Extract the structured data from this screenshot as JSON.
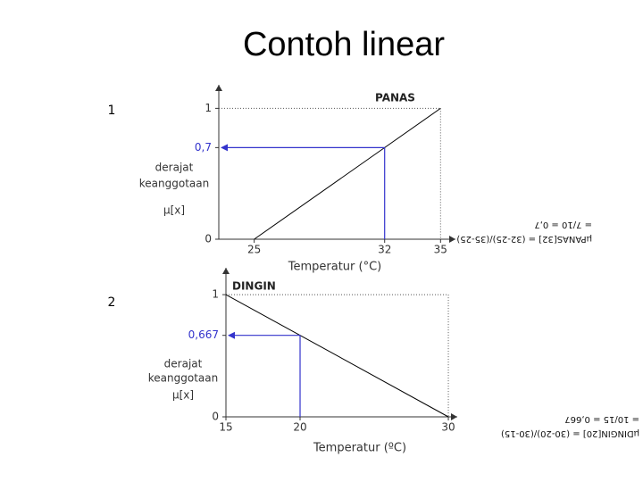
{
  "title": "Contoh linear",
  "chart_data": [
    {
      "type": "line",
      "number": "1",
      "title": "PANAS",
      "xlabel": "Temperatur (°C)",
      "ylabel": [
        "derajat",
        "keanggotaan"
      ],
      "ylabel2": "μ[x]",
      "x": [
        25,
        32,
        35
      ],
      "values": [
        0,
        0.7,
        1
      ],
      "color": "#000000",
      "guide_color": "#3333cc",
      "xlim": [
        23.1,
        35.8
      ],
      "xticks": [
        25,
        32,
        35
      ],
      "ylim": [
        0,
        1.18
      ],
      "yticks": [
        0,
        {
          "value": 0.7,
          "label": "0,7"
        },
        1
      ],
      "formula": [
        "μPANAS[32] = (32-25)/(35-25)",
        "= 7/10 = 0,7"
      ]
    },
    {
      "type": "line",
      "number": "2",
      "title": "DINGIN",
      "xlabel": "Temperatur (ºC)",
      "ylabel": [
        "derajat",
        "keanggotaan"
      ],
      "ylabel2": "μ[x]",
      "x": [
        15,
        20,
        30
      ],
      "values": [
        1,
        0.667,
        0
      ],
      "color": "#000000",
      "guide_color": "#3333cc",
      "xlim": [
        15,
        30.6
      ],
      "xticks": [
        15,
        20,
        30
      ],
      "ylim": [
        0,
        1.22
      ],
      "yticks": [
        0,
        {
          "value": 0.667,
          "label": "0,667"
        },
        1
      ],
      "formula": [
        "μDINGIN[20] = (30-20)/(30-15)",
        "= 10/15 = 0,667"
      ]
    }
  ]
}
